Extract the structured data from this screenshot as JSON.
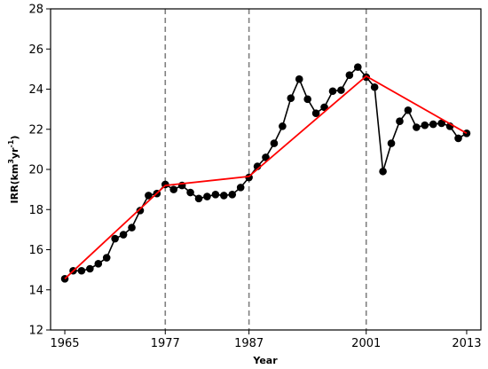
{
  "chart_data": {
    "type": "line",
    "title": "",
    "xlabel": "Year",
    "ylabel_parts": [
      "IRR(km",
      "3",
      "yr",
      "-1",
      ")"
    ],
    "xlim": [
      1963.3,
      2014.7
    ],
    "ylim": [
      12,
      28
    ],
    "xticks": [
      1965,
      1977,
      1987,
      2001,
      2013
    ],
    "yticks": [
      12,
      14,
      16,
      18,
      20,
      22,
      24,
      26,
      28
    ],
    "grid": false,
    "breakpoints": [
      1977,
      1987,
      2001
    ],
    "colors": {
      "observed": "#000000",
      "trend": "#ff0000",
      "breakpoint": "#808080"
    },
    "series": [
      {
        "x": [
          1965,
          1966,
          1967,
          1968,
          1969,
          1970,
          1971,
          1972,
          1973,
          1974,
          1975,
          1976,
          1977,
          1978,
          1979,
          1980,
          1981,
          1982,
          1983,
          1984,
          1985,
          1986,
          1987,
          1988,
          1989,
          1990,
          1991,
          1992,
          1993,
          1994,
          1995,
          1996,
          1997,
          1998,
          1999,
          2000,
          2001,
          2002,
          2003,
          2004,
          2005,
          2006,
          2007,
          2008,
          2009,
          2010,
          2011,
          2012,
          2013
        ],
        "values": [
          14.55,
          14.95,
          14.95,
          15.05,
          15.3,
          15.6,
          16.55,
          16.75,
          17.1,
          17.95,
          18.7,
          18.8,
          19.25,
          19.0,
          19.2,
          18.85,
          18.55,
          18.65,
          18.75,
          18.7,
          18.75,
          19.1,
          19.6,
          20.15,
          20.6,
          21.3,
          22.15,
          23.55,
          24.5,
          23.5,
          22.8,
          23.1,
          23.9,
          23.95,
          24.7,
          25.1,
          24.6,
          24.1,
          19.9,
          21.3,
          22.4,
          22.95,
          22.1,
          22.2,
          22.25,
          22.3,
          22.15,
          21.55,
          21.8
        ]
      },
      {
        "x": [
          1965,
          1977,
          1987,
          2001,
          2013
        ],
        "values": [
          14.55,
          19.2,
          19.65,
          24.65,
          21.8
        ]
      }
    ]
  }
}
